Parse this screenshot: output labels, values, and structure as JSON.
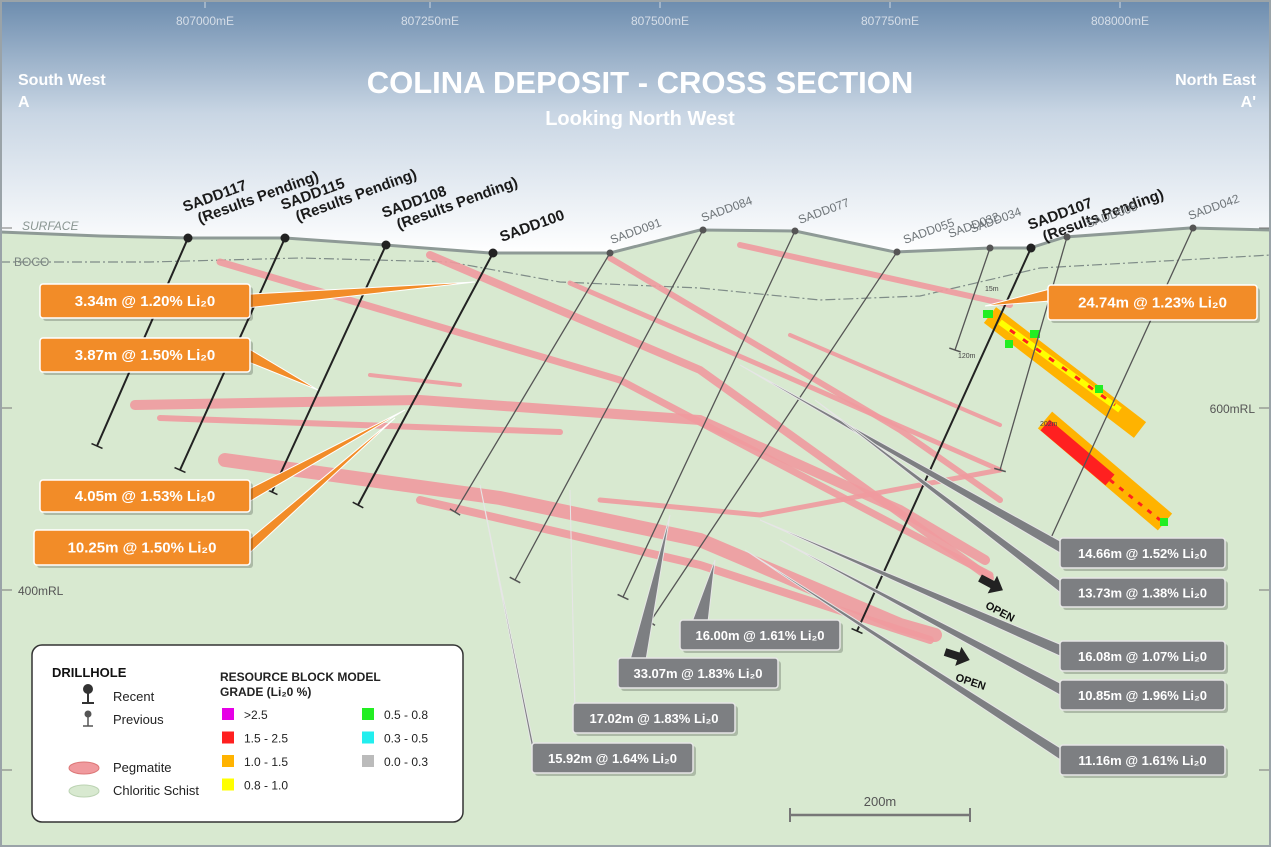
{
  "header": {
    "title": "COLINA DEPOSIT - CROSS SECTION",
    "subtitle": "Looking North West",
    "left_label": "South West",
    "left_marker": "A",
    "right_label": "North East",
    "right_marker": "A'"
  },
  "eastings": [
    "807000mE",
    "807250mE",
    "807500mE",
    "807750mE",
    "808000mE"
  ],
  "rl_labels": [
    "600mRL",
    "400mRL"
  ],
  "surface_label": "SURFACE",
  "boco_label": "BOCO",
  "drillholes": [
    {
      "name": "SADD117",
      "note": "(Results Pending)",
      "kind": "recent"
    },
    {
      "name": "SADD115",
      "note": "(Results Pending)",
      "kind": "recent"
    },
    {
      "name": "SADD108",
      "note": "(Results Pending)",
      "kind": "recent"
    },
    {
      "name": "SADD100",
      "kind": "recent"
    },
    {
      "name": "SADD091",
      "kind": "previous"
    },
    {
      "name": "SADD084",
      "kind": "previous"
    },
    {
      "name": "SADD077",
      "kind": "previous"
    },
    {
      "name": "SADD055",
      "kind": "previous"
    },
    {
      "name": "SADD032",
      "kind": "previous"
    },
    {
      "name": "SADD034",
      "kind": "previous"
    },
    {
      "name": "SADD107",
      "note": "(Results Pending)",
      "kind": "recent"
    },
    {
      "name": "SADD005",
      "kind": "previous"
    },
    {
      "name": "SADD042",
      "kind": "previous"
    }
  ],
  "depth_labels": [
    "15m",
    "120m",
    "202m"
  ],
  "intercepts": [
    {
      "text": "3.34m @ 1.20% Li₂0",
      "style": "orange"
    },
    {
      "text": "3.87m @ 1.50% Li₂0",
      "style": "orange"
    },
    {
      "text": "4.05m @ 1.53% Li₂0",
      "style": "orange"
    },
    {
      "text": "10.25m @ 1.50% Li₂0",
      "style": "orange"
    },
    {
      "text": "24.74m @ 1.23% Li₂0",
      "style": "orange"
    },
    {
      "text": "14.66m @ 1.52% Li₂0",
      "style": "grey"
    },
    {
      "text": "13.73m @ 1.38% Li₂0",
      "style": "grey"
    },
    {
      "text": "16.08m @ 1.07% Li₂0",
      "style": "grey"
    },
    {
      "text": "10.85m @ 1.96% Li₂0",
      "style": "grey"
    },
    {
      "text": "11.16m @ 1.61% Li₂0",
      "style": "grey"
    },
    {
      "text": "16.00m @ 1.61% Li₂0",
      "style": "grey"
    },
    {
      "text": "33.07m @ 1.83% Li₂0",
      "style": "grey"
    },
    {
      "text": "17.02m @ 1.83% Li₂0",
      "style": "grey"
    },
    {
      "text": "15.92m @ 1.64% Li₂0",
      "style": "grey"
    }
  ],
  "open_labels": [
    "OPEN",
    "OPEN"
  ],
  "legend": {
    "drillhole_title": "DRILLHOLE",
    "recent": "Recent",
    "previous": "Previous",
    "pegmatite": "Pegmatite",
    "schist": "Chloritic Schist",
    "grade_title": [
      "RESOURCE BLOCK MODEL",
      "GRADE (Li₂0 %)"
    ],
    "grades": [
      {
        "label": ">2.5",
        "color": "#e600e6"
      },
      {
        "label": "1.5 - 2.5",
        "color": "#ff2020"
      },
      {
        "label": "1.0 - 1.5",
        "color": "#ffb300"
      },
      {
        "label": "0.8 - 1.0",
        "color": "#ffff00"
      },
      {
        "label": "0.5 - 0.8",
        "color": "#22ee22"
      },
      {
        "label": "0.3 - 0.5",
        "color": "#22eeee"
      },
      {
        "label": "0.0 - 0.3",
        "color": "#bbbbbb"
      }
    ]
  },
  "scale_bar": "200m"
}
